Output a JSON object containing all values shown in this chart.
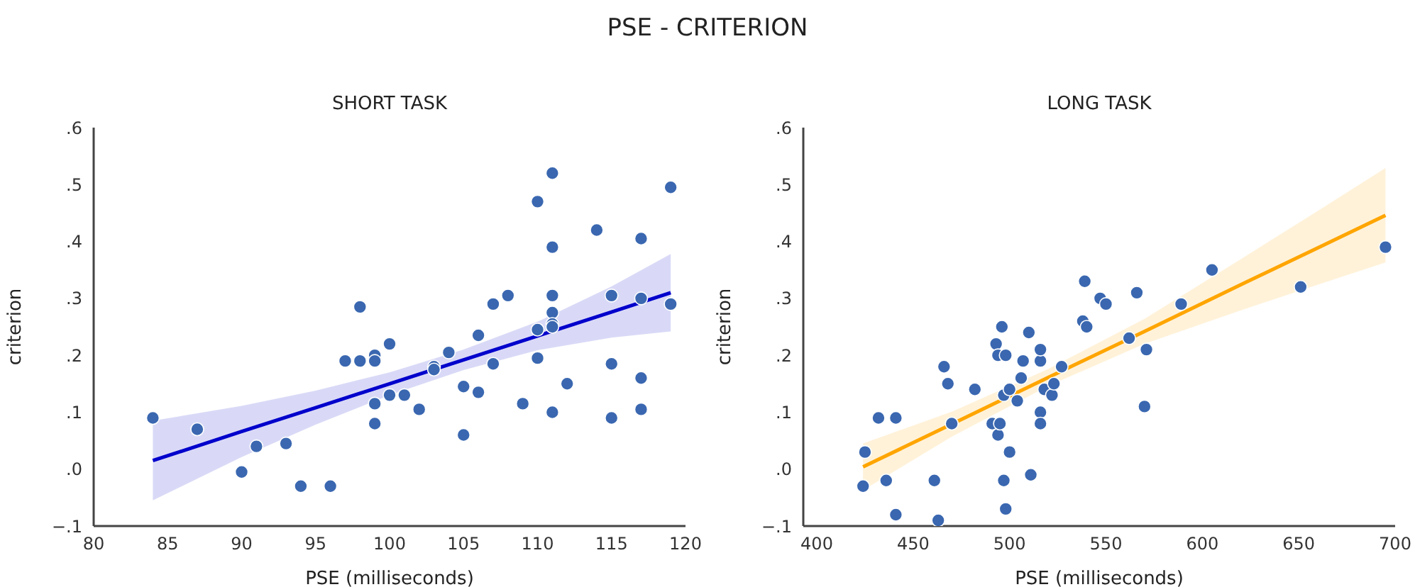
{
  "chart_data": [
    {
      "type": "scatter",
      "title": "PSE - CRITERION",
      "subtitle": "SHORT TASK",
      "xlabel": "PSE (milliseconds)",
      "ylabel": "criterion",
      "xlim": [
        80,
        120
      ],
      "xticks": [
        80,
        85,
        90,
        95,
        100,
        105,
        110,
        115,
        120
      ],
      "ylim": [
        -0.1,
        0.6
      ],
      "yticks": [
        {
          "value": -0.1,
          "label": "−.1"
        },
        {
          "value": 0,
          "label": ".0"
        },
        {
          "value": 0.1,
          "label": ".1"
        },
        {
          "value": 0.2,
          "label": ".2"
        },
        {
          "value": 0.3,
          "label": ".3"
        },
        {
          "value": 0.4,
          "label": ".4"
        },
        {
          "value": 0.5,
          "label": ".5"
        },
        {
          "value": 0.6,
          "label": ".6"
        }
      ],
      "series": [
        {
          "marker": "circle",
          "color": "#3a67b0",
          "x": [
            84,
            87,
            90,
            91,
            93,
            94,
            96,
            97,
            98,
            98,
            99,
            99,
            99,
            99,
            100,
            100,
            101,
            102,
            103,
            103,
            104,
            105,
            105,
            106,
            106,
            107,
            107,
            108,
            109,
            110,
            110,
            110,
            111,
            111,
            111,
            111,
            111,
            111,
            111,
            112,
            114,
            115,
            115,
            115,
            117,
            117,
            117,
            117,
            119,
            119
          ],
          "values": [
            0.09,
            0.07,
            -0.005,
            0.04,
            0.045,
            -0.03,
            -0.03,
            0.19,
            0.285,
            0.19,
            0.2,
            0.19,
            0.115,
            0.08,
            0.22,
            0.13,
            0.13,
            0.105,
            0.18,
            0.175,
            0.205,
            0.145,
            0.06,
            0.235,
            0.135,
            0.29,
            0.185,
            0.305,
            0.115,
            0.47,
            0.245,
            0.195,
            0.52,
            0.39,
            0.305,
            0.275,
            0.255,
            0.25,
            0.1,
            0.15,
            0.42,
            0.305,
            0.185,
            0.09,
            0.405,
            0.3,
            0.16,
            0.105,
            0.495,
            0.29
          ]
        },
        {
          "type": "line",
          "color": "#0000cc",
          "x": [
            84,
            90,
            95,
            100,
            105,
            110,
            115,
            119
          ],
          "values": [
            0.015,
            0.066,
            0.108,
            0.15,
            0.192,
            0.234,
            0.276,
            0.31
          ],
          "lower": [
            -0.055,
            0.021,
            0.078,
            0.13,
            0.174,
            0.209,
            0.231,
            0.242
          ],
          "upper": [
            0.085,
            0.111,
            0.138,
            0.17,
            0.21,
            0.259,
            0.321,
            0.378
          ]
        }
      ]
    },
    {
      "type": "scatter",
      "subtitle": "LONG TASK",
      "xlabel": "PSE (milliseconds)",
      "ylabel": "criterion",
      "xlim": [
        393,
        700
      ],
      "xticks": [
        400,
        450,
        500,
        550,
        600,
        650,
        700
      ],
      "ylim": [
        -0.1,
        0.6
      ],
      "yticks": [
        {
          "value": -0.1,
          "label": "−.1"
        },
        {
          "value": 0,
          "label": ".0"
        },
        {
          "value": 0.1,
          "label": ".1"
        },
        {
          "value": 0.2,
          "label": ".2"
        },
        {
          "value": 0.3,
          "label": ".3"
        },
        {
          "value": 0.4,
          "label": ".4"
        },
        {
          "value": 0.5,
          "label": ".5"
        },
        {
          "value": 0.6,
          "label": ".6"
        }
      ],
      "series": [
        {
          "marker": "circle",
          "color": "#3a67b0",
          "x": [
            424,
            425,
            432,
            436,
            441,
            441,
            461,
            463,
            466,
            468,
            470,
            482,
            491,
            493,
            494,
            494,
            495,
            496,
            497,
            497,
            498,
            498,
            500,
            500,
            504,
            506,
            507,
            510,
            511,
            516,
            516,
            516,
            516,
            518,
            522,
            523,
            527,
            538,
            539,
            540,
            547,
            550,
            562,
            566,
            570,
            571,
            589,
            605,
            651,
            695
          ],
          "values": [
            -0.03,
            0.03,
            0.09,
            -0.02,
            0.09,
            -0.08,
            -0.02,
            -0.09,
            0.18,
            0.15,
            0.08,
            0.14,
            0.08,
            0.22,
            0.2,
            0.06,
            0.08,
            0.25,
            0.13,
            -0.02,
            -0.07,
            0.2,
            0.14,
            0.03,
            0.12,
            0.16,
            0.19,
            0.24,
            -0.01,
            0.19,
            0.1,
            0.08,
            0.21,
            0.14,
            0.13,
            0.15,
            0.18,
            0.26,
            0.33,
            0.25,
            0.3,
            0.29,
            0.23,
            0.31,
            0.11,
            0.21,
            0.29,
            0.35,
            0.32,
            0.39
          ]
        },
        {
          "type": "line",
          "color": "#ffa500",
          "x": [
            424,
            470,
            520,
            570,
            620,
            660,
            695
          ],
          "values": [
            0.004,
            0.079,
            0.161,
            0.242,
            0.324,
            0.389,
            0.446
          ],
          "lower": [
            -0.037,
            0.057,
            0.146,
            0.22,
            0.279,
            0.324,
            0.363
          ],
          "upper": [
            0.045,
            0.101,
            0.176,
            0.264,
            0.369,
            0.454,
            0.529
          ]
        }
      ]
    }
  ]
}
